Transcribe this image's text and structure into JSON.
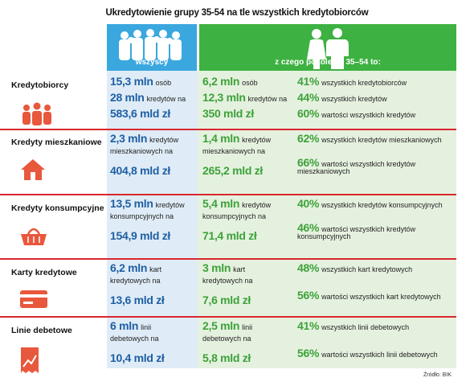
{
  "title": "Ukredytowienie grupy 35-54 na tle wszystkich kredytobiorców",
  "colors": {
    "blue": "#3aa7de",
    "green": "#3db142",
    "red": "#d9272e",
    "dark_blue": "#1f5fa3",
    "dark_green": "#3da23a"
  },
  "headers": {
    "all": "wszyscy",
    "gen": "z czego pokolenie 35–54 to:"
  },
  "rows": [
    {
      "label": "Kredytobiorcy",
      "icon": "people-icon",
      "all": [
        {
          "num": "15,3 mln",
          "txt": "osób"
        },
        {
          "num": "28 mln",
          "txt": "kredytów na"
        },
        {
          "num": "583,6 mld zł",
          "txt": ""
        }
      ],
      "gen": [
        {
          "num": "6,2 mln",
          "txt": "osób"
        },
        {
          "num": "12,3 mln",
          "txt": "kredytów na"
        },
        {
          "num": "350 mld zł",
          "txt": ""
        }
      ],
      "pct": [
        {
          "num": "41%",
          "txt": "wszystkich kredytobiorców"
        },
        {
          "num": "44%",
          "txt": "wszystkich kredytów"
        },
        {
          "num": "60%",
          "txt": "wartości wszystkich kredytów"
        }
      ]
    },
    {
      "label": "Kredyty mieszkaniowe",
      "icon": "house-icon",
      "all": [
        {
          "num": "2,3 mln",
          "txt": "kredytów"
        },
        {
          "num": "",
          "txt": "mieszkaniowych na"
        },
        {
          "num": "404,8 mld zł",
          "txt": ""
        }
      ],
      "gen": [
        {
          "num": "1,4 mln",
          "txt": "kredytów"
        },
        {
          "num": "",
          "txt": "mieszkaniowych na"
        },
        {
          "num": "265,2 mld zł",
          "txt": ""
        }
      ],
      "pct": [
        {
          "num": "62%",
          "txt": "wszystkich kredytów mieszkaniowych"
        },
        {
          "num": "66%",
          "txt": "wartości wszystkich kredytów"
        },
        {
          "num": "",
          "txt": "mieszkaniowych"
        }
      ]
    },
    {
      "label": "Kredyty konsumpcyjne",
      "icon": "basket-icon",
      "all": [
        {
          "num": "13,5 mln",
          "txt": "kredytów"
        },
        {
          "num": "",
          "txt": "konsumpcyjnych na"
        },
        {
          "num": "154,9 mld zł",
          "txt": ""
        }
      ],
      "gen": [
        {
          "num": "5,4 mln",
          "txt": "kredytów"
        },
        {
          "num": "",
          "txt": "konsumpcyjnych na"
        },
        {
          "num": "71,4 mld zł",
          "txt": ""
        }
      ],
      "pct": [
        {
          "num": "40%",
          "txt": "wszystkich kredytów konsumpcyjnych"
        },
        {
          "num": "46%",
          "txt": "wartości wszystkich kredytów"
        },
        {
          "num": "",
          "txt": "konsumpcyjnych"
        }
      ]
    },
    {
      "label": "Karty kredytowe",
      "icon": "credit-card-icon",
      "all": [
        {
          "num": "6,2 mln",
          "txt": "kart"
        },
        {
          "num": "",
          "txt": "kredytowych na"
        },
        {
          "num": "13,6 mld zł",
          "txt": ""
        }
      ],
      "gen": [
        {
          "num": "3 mln",
          "txt": "kart"
        },
        {
          "num": "",
          "txt": "kredytowych na"
        },
        {
          "num": "7,6 mld zł",
          "txt": ""
        }
      ],
      "pct": [
        {
          "num": "48%",
          "txt": "wszystkich kart kredytowych"
        },
        {
          "num": "56%",
          "txt": "wartości wszystkich kart kredytowych"
        }
      ]
    },
    {
      "label": "Linie debetowe",
      "icon": "receipt-icon",
      "all": [
        {
          "num": "6 mln",
          "txt": "linii"
        },
        {
          "num": "",
          "txt": "debetowych na"
        },
        {
          "num": "10,4 mld zł",
          "txt": ""
        }
      ],
      "gen": [
        {
          "num": "2,5 mln",
          "txt": "linii"
        },
        {
          "num": "",
          "txt": "debetowych na"
        },
        {
          "num": "5,8 mld zł",
          "txt": ""
        }
      ],
      "pct": [
        {
          "num": "41%",
          "txt": "wszystkich linii debetowych"
        },
        {
          "num": "56%",
          "txt": "wartości wszystkich linii debetowych"
        }
      ]
    }
  ],
  "source": "Źródło: BIK"
}
